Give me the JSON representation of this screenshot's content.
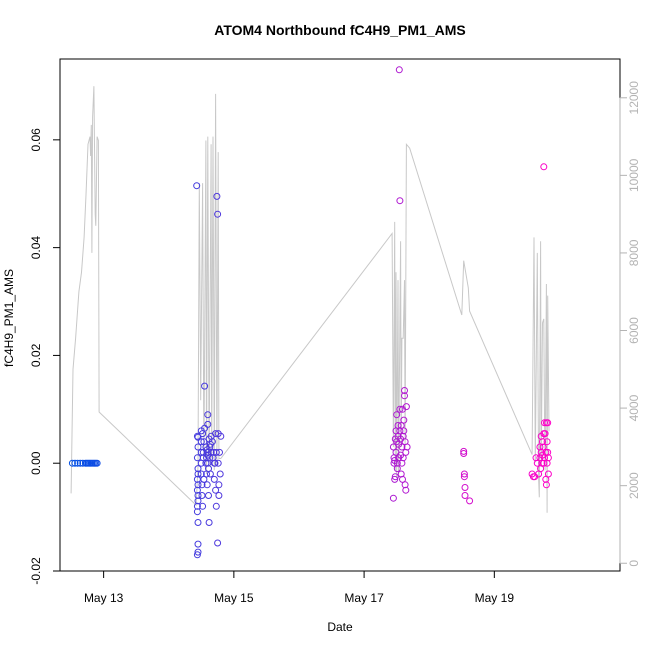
{
  "chart_data": {
    "type": "scatter",
    "title": "ATOM4 Northbound fC4H9_PM1_AMS",
    "xlabel": "Date",
    "ylabel": "fC4H9_PM1_AMS",
    "x_unit": "days (12 = May 12 00:00)",
    "xlim": [
      12.33,
      20.93
    ],
    "ylim": [
      -0.02,
      0.075
    ],
    "y_ticks": [
      -0.02,
      0.0,
      0.02,
      0.04,
      0.06
    ],
    "y_tick_labels": [
      "-0.02",
      "0.00",
      "0.02",
      "0.04",
      "0.06"
    ],
    "x_ticks": [
      13,
      15,
      17,
      19
    ],
    "x_tick_labels": [
      "May 13",
      "May 15",
      "May 17",
      "May 19"
    ],
    "right_axis": {
      "label": "",
      "ylim": [
        -200,
        13000
      ],
      "ticks": [
        0,
        2000,
        4000,
        6000,
        8000,
        10000,
        12000
      ],
      "tick_labels": [
        "0",
        "2000",
        "4000",
        "6000",
        "8000",
        "10000",
        "12000"
      ],
      "color": "#b3b3b3"
    },
    "colors": {
      "line": "#c8c8c8",
      "gradient_start": "#0050e6",
      "gradient_end": "#ff00c8"
    },
    "altitude_line": [
      [
        12.5,
        1800
      ],
      [
        12.53,
        5000
      ],
      [
        12.57,
        5800
      ],
      [
        12.62,
        7000
      ],
      [
        12.66,
        7500
      ],
      [
        12.7,
        8400
      ],
      [
        12.73,
        9500
      ],
      [
        12.76,
        10800
      ],
      [
        12.79,
        11000
      ],
      [
        12.8,
        10500
      ],
      [
        12.81,
        11300
      ],
      [
        12.82,
        8000
      ],
      [
        12.83,
        11500
      ],
      [
        12.85,
        12300
      ],
      [
        12.87,
        9000
      ],
      [
        12.88,
        8700
      ],
      [
        12.9,
        11000
      ],
      [
        12.92,
        10900
      ],
      [
        12.93,
        3900
      ],
      [
        14.42,
        1500
      ],
      [
        14.45,
        2500
      ],
      [
        14.47,
        9800
      ],
      [
        14.49,
        4200
      ],
      [
        14.52,
        9800
      ],
      [
        14.54,
        2600
      ],
      [
        14.57,
        10900
      ],
      [
        14.58,
        2300
      ],
      [
        14.6,
        11000
      ],
      [
        14.62,
        2500
      ],
      [
        14.65,
        10800
      ],
      [
        14.66,
        2700
      ],
      [
        14.68,
        11000
      ],
      [
        14.7,
        2400
      ],
      [
        14.72,
        12100
      ],
      [
        14.74,
        2600
      ],
      [
        14.76,
        10600
      ],
      [
        14.77,
        2700
      ],
      [
        14.8,
        2700
      ],
      [
        17.43,
        8500
      ],
      [
        17.45,
        3000
      ],
      [
        17.47,
        8800
      ],
      [
        17.48,
        2400
      ],
      [
        17.49,
        7500
      ],
      [
        17.5,
        2200
      ],
      [
        17.52,
        7300
      ],
      [
        17.53,
        2300
      ],
      [
        17.56,
        8300
      ],
      [
        17.57,
        3000
      ],
      [
        17.58,
        5800
      ],
      [
        17.6,
        5800
      ],
      [
        17.62,
        7300
      ],
      [
        17.63,
        3000
      ],
      [
        17.65,
        10800
      ],
      [
        17.7,
        10700
      ],
      [
        18.5,
        6400
      ],
      [
        18.53,
        7800
      ],
      [
        18.6,
        7100
      ],
      [
        18.62,
        6500
      ],
      [
        19.58,
        2800
      ],
      [
        19.61,
        8400
      ],
      [
        19.63,
        2600
      ],
      [
        19.66,
        8000
      ],
      [
        19.68,
        2200
      ],
      [
        19.69,
        1700
      ],
      [
        19.71,
        8300
      ],
      [
        19.72,
        2500
      ],
      [
        19.74,
        6200
      ],
      [
        19.76,
        6300
      ],
      [
        19.77,
        3800
      ],
      [
        19.78,
        2400
      ],
      [
        19.8,
        7200
      ],
      [
        19.81,
        1300
      ],
      [
        19.82,
        6900
      ],
      [
        19.84,
        3400
      ]
    ],
    "points": [
      [
        12.52,
        0.0
      ],
      [
        12.56,
        0.0
      ],
      [
        12.6,
        0.0
      ],
      [
        12.64,
        0.0
      ],
      [
        12.68,
        0.0
      ],
      [
        12.72,
        0.0
      ],
      [
        12.74,
        0.0
      ],
      [
        12.76,
        0.0
      ],
      [
        12.78,
        0.0
      ],
      [
        12.8,
        0.0
      ],
      [
        12.82,
        0.0
      ],
      [
        12.84,
        0.0
      ],
      [
        12.86,
        0.0
      ],
      [
        12.88,
        0.0
      ],
      [
        12.9,
        0.0
      ],
      [
        14.43,
        0.0515
      ],
      [
        14.44,
        -0.017
      ],
      [
        14.45,
        -0.0165
      ],
      [
        14.45,
        -0.015
      ],
      [
        14.45,
        -0.011
      ],
      [
        14.44,
        -0.009
      ],
      [
        14.44,
        -0.008
      ],
      [
        14.45,
        -0.007
      ],
      [
        14.45,
        -0.006
      ],
      [
        14.44,
        -0.005
      ],
      [
        14.45,
        -0.004
      ],
      [
        14.44,
        -0.003
      ],
      [
        14.45,
        -0.002
      ],
      [
        14.45,
        -0.001
      ],
      [
        14.44,
        0.001
      ],
      [
        14.45,
        0.003
      ],
      [
        14.44,
        0.005
      ],
      [
        14.45,
        0.0048
      ],
      [
        14.5,
        0.006
      ],
      [
        14.5,
        0.004
      ],
      [
        14.5,
        0.002
      ],
      [
        14.5,
        0.0
      ],
      [
        14.5,
        -0.002
      ],
      [
        14.51,
        -0.004
      ],
      [
        14.51,
        -0.006
      ],
      [
        14.52,
        0.0055
      ],
      [
        14.52,
        -0.008
      ],
      [
        14.53,
        0.002
      ],
      [
        14.53,
        0.001
      ],
      [
        14.54,
        -0.003
      ],
      [
        14.54,
        0.004
      ],
      [
        14.55,
        0.0143
      ],
      [
        14.55,
        0.0065
      ],
      [
        14.57,
        0.003
      ],
      [
        14.57,
        0.0
      ],
      [
        14.58,
        -0.002
      ],
      [
        14.58,
        0.001
      ],
      [
        14.59,
        0.0025
      ],
      [
        14.59,
        -0.004
      ],
      [
        14.6,
        0.009
      ],
      [
        14.6,
        0.0072
      ],
      [
        14.6,
        0.002
      ],
      [
        14.6,
        0.0015
      ],
      [
        14.6,
        0.0
      ],
      [
        14.61,
        -0.001
      ],
      [
        14.61,
        -0.006
      ],
      [
        14.62,
        -0.011
      ],
      [
        14.62,
        0.0045
      ],
      [
        14.63,
        0.003
      ],
      [
        14.63,
        0.001
      ],
      [
        14.64,
        -0.002
      ],
      [
        14.64,
        0.0035
      ],
      [
        14.65,
        0.005
      ],
      [
        14.65,
        0.002
      ],
      [
        14.67,
        0.004
      ],
      [
        14.68,
        0.001
      ],
      [
        14.69,
        0.002
      ],
      [
        14.7,
        -0.003
      ],
      [
        14.7,
        0.0
      ],
      [
        14.71,
        0.0
      ],
      [
        14.72,
        -0.005
      ],
      [
        14.72,
        0.0055
      ],
      [
        14.73,
        0.002
      ],
      [
        14.73,
        -0.008
      ],
      [
        14.74,
        0.0495
      ],
      [
        14.75,
        0.0462
      ],
      [
        14.75,
        -0.0148
      ],
      [
        14.76,
        0.0055
      ],
      [
        14.76,
        0.0
      ],
      [
        14.77,
        -0.004
      ],
      [
        14.77,
        -0.006
      ],
      [
        14.78,
        0.002
      ],
      [
        14.79,
        -0.002
      ],
      [
        14.8,
        0.005
      ],
      [
        17.45,
        -0.0065
      ],
      [
        17.45,
        0.003
      ],
      [
        17.46,
        0.001
      ],
      [
        17.46,
        0.0
      ],
      [
        17.47,
        0.0005
      ],
      [
        17.47,
        -0.003
      ],
      [
        17.48,
        0.0045
      ],
      [
        17.48,
        -0.0025
      ],
      [
        17.49,
        0.006
      ],
      [
        17.49,
        0.002
      ],
      [
        17.5,
        0.009
      ],
      [
        17.5,
        0.004
      ],
      [
        17.51,
        0.0
      ],
      [
        17.51,
        -0.001
      ],
      [
        17.52,
        0.007
      ],
      [
        17.52,
        0.005
      ],
      [
        17.53,
        0.0035
      ],
      [
        17.53,
        0.001
      ],
      [
        17.54,
        0.073
      ],
      [
        17.55,
        0.0487
      ],
      [
        17.55,
        0.01
      ],
      [
        17.55,
        0.006
      ],
      [
        17.56,
        0.0045
      ],
      [
        17.56,
        0.0015
      ],
      [
        17.57,
        0.007
      ],
      [
        17.57,
        -0.002
      ],
      [
        17.58,
        0.003
      ],
      [
        17.58,
        0.0
      ],
      [
        17.59,
        0.01
      ],
      [
        17.59,
        -0.003
      ],
      [
        17.6,
        0.005
      ],
      [
        17.6,
        0.001
      ],
      [
        17.61,
        0.008
      ],
      [
        17.61,
        0.006
      ],
      [
        17.62,
        0.0125
      ],
      [
        17.62,
        0.0135
      ],
      [
        17.63,
        0.004
      ],
      [
        17.63,
        -0.004
      ],
      [
        17.64,
        0.002
      ],
      [
        17.64,
        -0.005
      ],
      [
        17.65,
        0.0105
      ],
      [
        17.66,
        0.003
      ],
      [
        18.53,
        0.0022
      ],
      [
        18.53,
        0.0018
      ],
      [
        18.54,
        -0.002
      ],
      [
        18.54,
        -0.0025
      ],
      [
        18.55,
        -0.006
      ],
      [
        18.55,
        -0.0045
      ],
      [
        18.62,
        -0.007
      ],
      [
        19.58,
        -0.002
      ],
      [
        19.6,
        -0.0025
      ],
      [
        19.62,
        -0.0025
      ],
      [
        19.64,
        0.001
      ],
      [
        19.66,
        0.0
      ],
      [
        19.68,
        -0.002
      ],
      [
        19.7,
        0.003
      ],
      [
        19.7,
        0.001
      ],
      [
        19.71,
        -0.001
      ],
      [
        19.72,
        0.005
      ],
      [
        19.72,
        0.002
      ],
      [
        19.73,
        0.0
      ],
      [
        19.74,
        0.004
      ],
      [
        19.74,
        0.0015
      ],
      [
        19.75,
        0.003
      ],
      [
        19.76,
        0.0055
      ],
      [
        19.76,
        0.0
      ],
      [
        19.77,
        0.0075
      ],
      [
        19.77,
        0.001
      ],
      [
        19.78,
        0.0055
      ],
      [
        19.79,
        0.002
      ],
      [
        19.79,
        -0.003
      ],
      [
        19.8,
        0.0075
      ],
      [
        19.8,
        -0.004
      ],
      [
        19.81,
        0.004
      ],
      [
        19.81,
        0.0
      ],
      [
        19.82,
        0.0075
      ],
      [
        19.82,
        0.002
      ],
      [
        19.83,
        0.001
      ],
      [
        19.83,
        -0.002
      ],
      [
        19.76,
        0.055
      ]
    ]
  }
}
